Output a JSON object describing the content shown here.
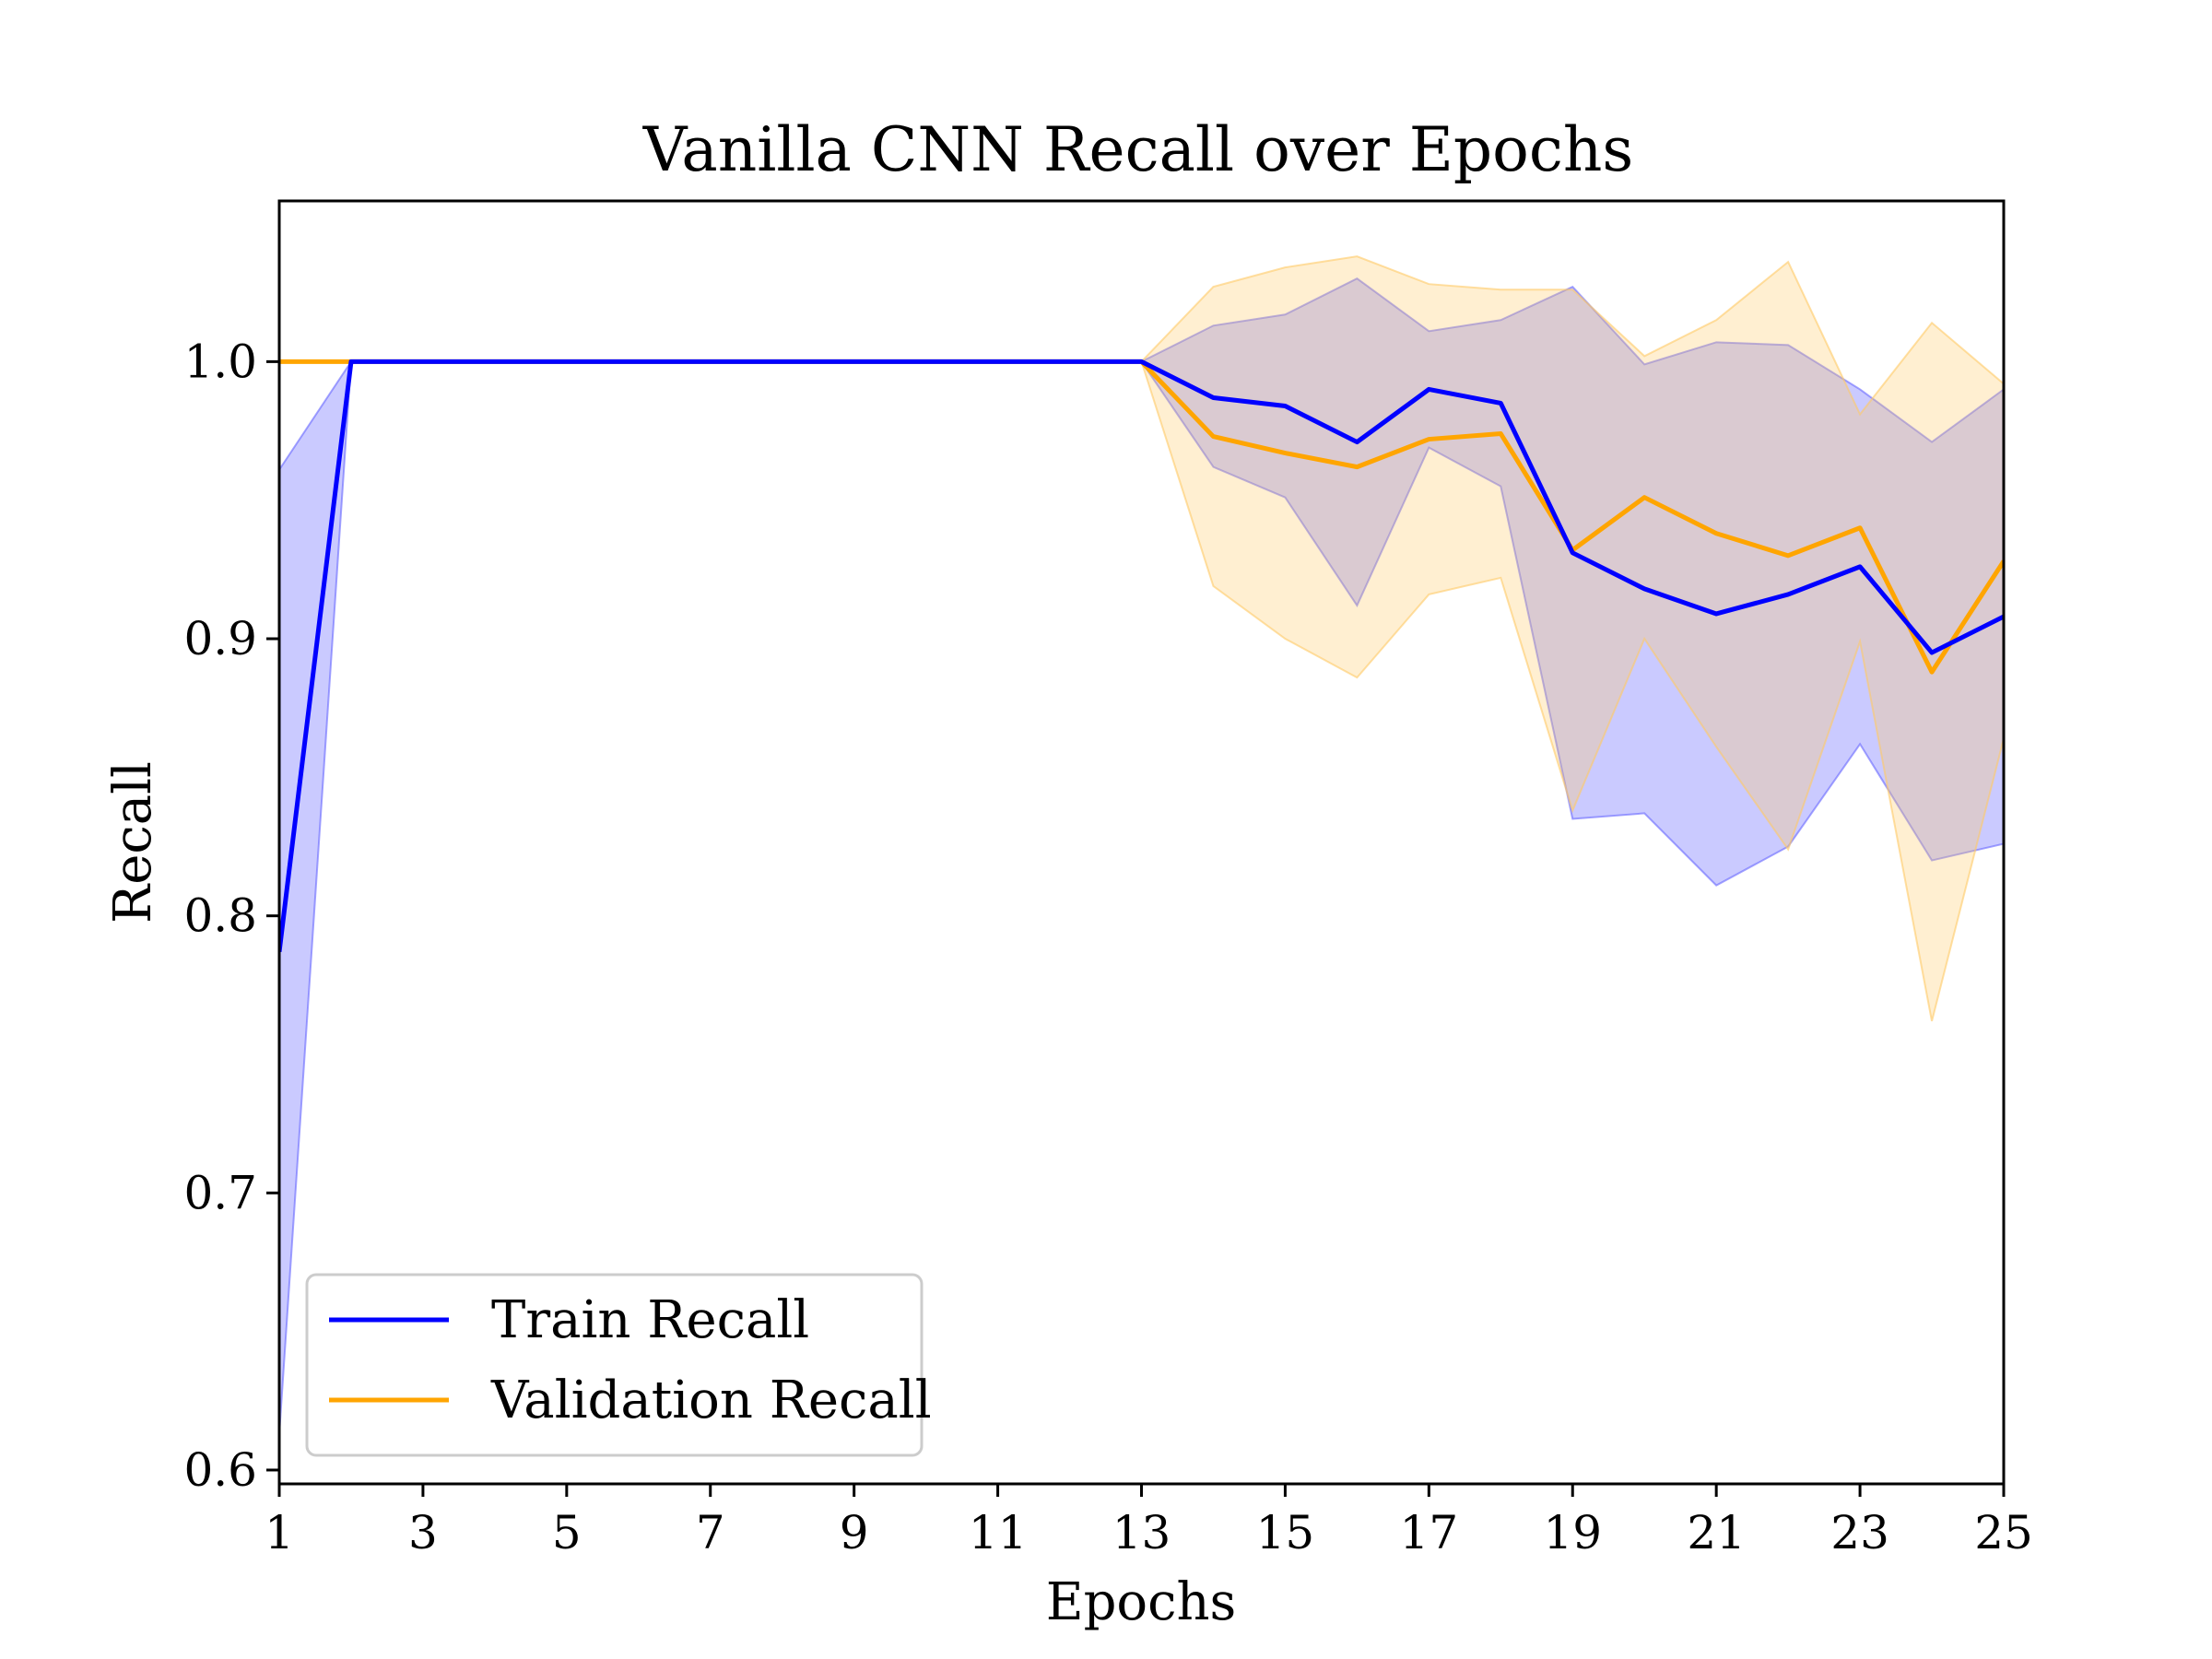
{
  "chart_data": {
    "type": "line",
    "title": "Vanilla CNN Recall over Epochs",
    "xlabel": "Epochs",
    "ylabel": "Recall",
    "xlim": [
      1,
      25
    ],
    "ylim": [
      0.595,
      1.058
    ],
    "xticks": [
      1,
      3,
      5,
      7,
      9,
      11,
      13,
      15,
      17,
      19,
      21,
      23,
      25
    ],
    "yticks": [
      0.6,
      0.7,
      0.8,
      0.9,
      1.0
    ],
    "ytick_labels": [
      "0.6",
      "0.7",
      "0.8",
      "0.9",
      "1.0"
    ],
    "grid": false,
    "legend_position": "lower-left",
    "x": [
      1,
      2,
      3,
      4,
      5,
      6,
      7,
      8,
      9,
      10,
      11,
      12,
      13,
      14,
      15,
      16,
      17,
      18,
      19,
      20,
      21,
      22,
      23,
      24,
      25
    ],
    "series": [
      {
        "name": "Train Recall",
        "color": "#0000ff",
        "band_color": "#6666ff",
        "values": [
          0.787,
          1.0,
          1.0,
          1.0,
          1.0,
          1.0,
          1.0,
          1.0,
          1.0,
          1.0,
          1.0,
          1.0,
          1.0,
          0.987,
          0.984,
          0.971,
          0.99,
          0.985,
          0.931,
          0.918,
          0.909,
          0.916,
          0.926,
          0.895,
          0.908
        ],
        "upper": [
          0.961,
          1.0,
          1.0,
          1.0,
          1.0,
          1.0,
          1.0,
          1.0,
          1.0,
          1.0,
          1.0,
          1.0,
          1.0,
          1.013,
          1.017,
          1.03,
          1.011,
          1.015,
          1.027,
          0.999,
          1.007,
          1.006,
          0.99,
          0.971,
          0.99
        ],
        "lower": [
          0.613,
          1.0,
          1.0,
          1.0,
          1.0,
          1.0,
          1.0,
          1.0,
          1.0,
          1.0,
          1.0,
          1.0,
          1.0,
          0.962,
          0.951,
          0.912,
          0.969,
          0.955,
          0.835,
          0.837,
          0.811,
          0.825,
          0.862,
          0.82,
          0.826
        ]
      },
      {
        "name": "Validation Recall",
        "color": "#ffa500",
        "band_color": "#ffc966",
        "values": [
          1.0,
          1.0,
          1.0,
          1.0,
          1.0,
          1.0,
          1.0,
          1.0,
          1.0,
          1.0,
          1.0,
          1.0,
          1.0,
          0.973,
          0.967,
          0.962,
          0.972,
          0.974,
          0.932,
          0.951,
          0.938,
          0.93,
          0.94,
          0.888,
          0.928
        ],
        "upper": [
          1.0,
          1.0,
          1.0,
          1.0,
          1.0,
          1.0,
          1.0,
          1.0,
          1.0,
          1.0,
          1.0,
          1.0,
          1.0,
          1.027,
          1.034,
          1.038,
          1.028,
          1.026,
          1.026,
          1.002,
          1.015,
          1.036,
          0.981,
          1.014,
          0.992
        ],
        "lower": [
          1.0,
          1.0,
          1.0,
          1.0,
          1.0,
          1.0,
          1.0,
          1.0,
          1.0,
          1.0,
          1.0,
          1.0,
          1.0,
          0.919,
          0.9,
          0.886,
          0.916,
          0.922,
          0.838,
          0.9,
          0.861,
          0.824,
          0.899,
          0.762,
          0.864
        ]
      }
    ]
  }
}
